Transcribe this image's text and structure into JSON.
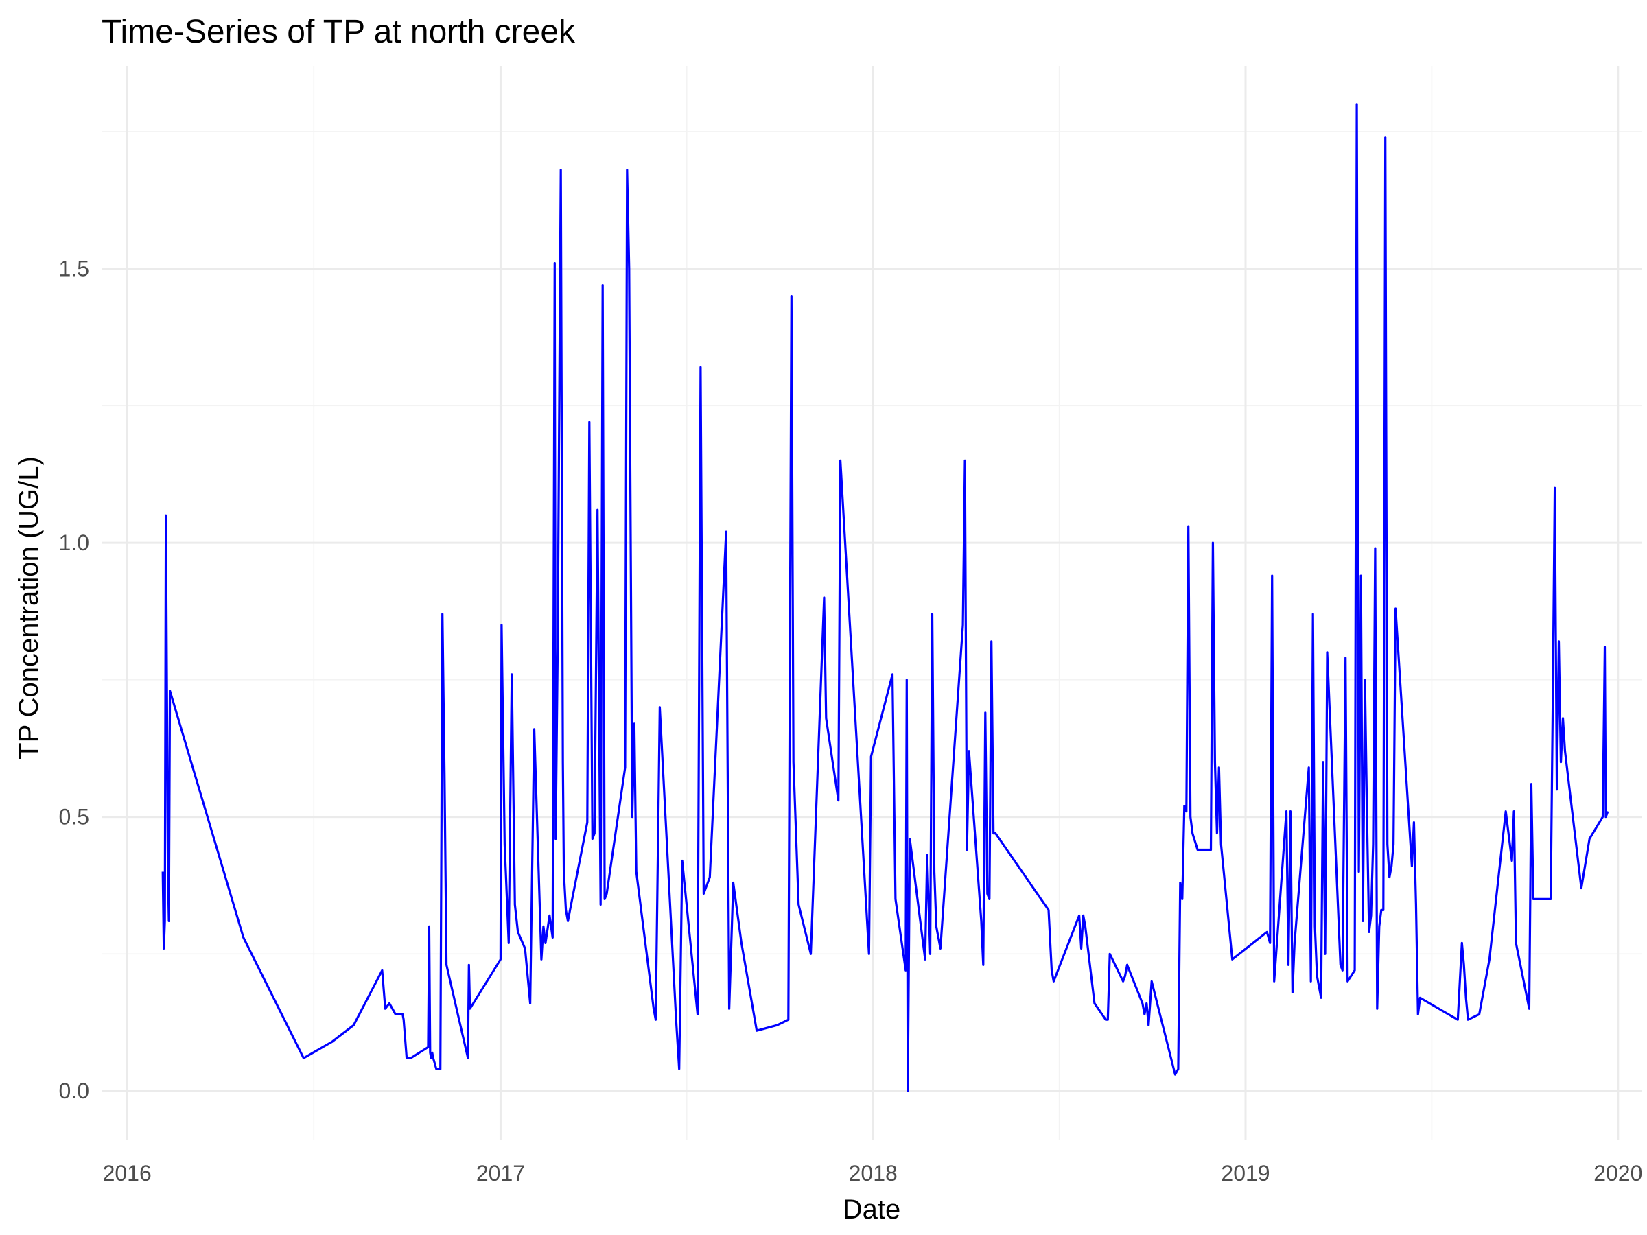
{
  "chart_data": {
    "type": "line",
    "title": "Time-Series of TP at north creek",
    "xlabel": "Date",
    "ylabel": "TP Concentration (UG/L)",
    "x_ticks": [
      "2016",
      "2017",
      "2018",
      "2019",
      "2020"
    ],
    "y_ticks": [
      "0.0",
      "0.5",
      "1.0",
      "1.5"
    ],
    "xlim": [
      "2015-12-07",
      "2020-01-24"
    ],
    "ylim": [
      -0.09,
      1.87
    ],
    "grid": true,
    "legend": "none",
    "series": [
      {
        "color": "#0000ff",
        "x": [
          "2016-02-05",
          "2016-02-06",
          "2016-02-07",
          "2016-02-08",
          "2016-02-09",
          "2016-02-10",
          "2016-02-11",
          "2016-02-12",
          "2016-04-24",
          "2016-06-22",
          "2016-07-20",
          "2016-08-10",
          "2016-09-07",
          "2016-09-10",
          "2016-09-14",
          "2016-09-20",
          "2016-09-27",
          "2016-09-28",
          "2016-10-01",
          "2016-10-05",
          "2016-10-22",
          "2016-10-23",
          "2016-10-24",
          "2016-10-25",
          "2016-10-26",
          "2016-10-27",
          "2016-10-30",
          "2016-11-01",
          "2016-11-03",
          "2016-11-05",
          "2016-11-07",
          "2016-11-09",
          "2016-11-30",
          "2016-12-01",
          "2016-12-02",
          "2017-01-01",
          "2017-01-02",
          "2017-01-05",
          "2017-01-09",
          "2017-01-12",
          "2017-01-15",
          "2017-01-18",
          "2017-01-25",
          "2017-01-30",
          "2017-02-03",
          "2017-02-10",
          "2017-02-12",
          "2017-02-14",
          "2017-02-18",
          "2017-02-21",
          "2017-02-23",
          "2017-02-24",
          "2017-02-26",
          "2017-03-01",
          "2017-03-03",
          "2017-03-04",
          "2017-03-06",
          "2017-03-08",
          "2017-03-10",
          "2017-03-27",
          "2017-03-29",
          "2017-04-01",
          "2017-04-03",
          "2017-04-06",
          "2017-04-09",
          "2017-04-11",
          "2017-04-13",
          "2017-04-15",
          "2017-05-03",
          "2017-05-05",
          "2017-05-07",
          "2017-05-10",
          "2017-05-12",
          "2017-05-14",
          "2017-05-31",
          "2017-06-02",
          "2017-06-06",
          "2017-06-22",
          "2017-06-25",
          "2017-06-28",
          "2017-07-13",
          "2017-07-16",
          "2017-07-19",
          "2017-07-25",
          "2017-08-10",
          "2017-08-13",
          "2017-08-17",
          "2017-08-25",
          "2017-09-09",
          "2017-09-29",
          "2017-10-10",
          "2017-10-13",
          "2017-10-15",
          "2017-10-20",
          "2017-11-01",
          "2017-11-14",
          "2017-11-16",
          "2017-11-28",
          "2017-11-30",
          "2017-12-28",
          "2017-12-30",
          "2018-01-20",
          "2018-01-23",
          "2018-02-02",
          "2018-02-03",
          "2018-02-04",
          "2018-02-06",
          "2018-02-21",
          "2018-02-23",
          "2018-02-26",
          "2018-02-28",
          "2018-03-02",
          "2018-03-04",
          "2018-03-08",
          "2018-03-30",
          "2018-04-01",
          "2018-04-03",
          "2018-04-05",
          "2018-04-17",
          "2018-04-19",
          "2018-04-21",
          "2018-04-23",
          "2018-04-25",
          "2018-04-27",
          "2018-04-29",
          "2018-05-01",
          "2018-06-22",
          "2018-06-25",
          "2018-06-27",
          "2018-07-22",
          "2018-07-24",
          "2018-07-26",
          "2018-07-28",
          "2018-08-06",
          "2018-08-17",
          "2018-08-19",
          "2018-08-21",
          "2018-09-03",
          "2018-09-05",
          "2018-09-07",
          "2018-09-22",
          "2018-09-24",
          "2018-09-26",
          "2018-09-28",
          "2018-10-01",
          "2018-10-24",
          "2018-10-27",
          "2018-10-29",
          "2018-10-31",
          "2018-11-02",
          "2018-11-04",
          "2018-11-06",
          "2018-11-08",
          "2018-11-10",
          "2018-11-15",
          "2018-11-28",
          "2018-11-30",
          "2018-12-02",
          "2018-12-04",
          "2018-12-06",
          "2018-12-08",
          "2018-12-19",
          "2019-01-22",
          "2019-01-25",
          "2019-01-27",
          "2019-01-29",
          "2019-02-10",
          "2019-02-12",
          "2019-02-14",
          "2019-02-16",
          "2019-02-18",
          "2019-03-04",
          "2019-03-06",
          "2019-03-08",
          "2019-03-10",
          "2019-03-12",
          "2019-03-16",
          "2019-03-18",
          "2019-03-20",
          "2019-03-22",
          "2019-04-04",
          "2019-04-06",
          "2019-04-09",
          "2019-04-11",
          "2019-04-18",
          "2019-04-20",
          "2019-04-22",
          "2019-04-24",
          "2019-04-26",
          "2019-04-28",
          "2019-04-30",
          "2019-05-02",
          "2019-05-04",
          "2019-05-06",
          "2019-05-08",
          "2019-05-10",
          "2019-05-12",
          "2019-05-14",
          "2019-05-16",
          "2019-05-18",
          "2019-05-20",
          "2019-05-22",
          "2019-05-24",
          "2019-05-26",
          "2019-05-28",
          "2019-06-13",
          "2019-06-15",
          "2019-06-17",
          "2019-06-19",
          "2019-06-21",
          "2019-07-28",
          "2019-08-01",
          "2019-08-03",
          "2019-08-05",
          "2019-08-07",
          "2019-08-18",
          "2019-08-28",
          "2019-09-13",
          "2019-09-19",
          "2019-09-21",
          "2019-09-23",
          "2019-10-06",
          "2019-10-08",
          "2019-10-10",
          "2019-10-27",
          "2019-10-29",
          "2019-10-31",
          "2019-11-02",
          "2019-11-04",
          "2019-11-06",
          "2019-11-08",
          "2019-11-10",
          "2019-11-26",
          "2019-12-04",
          "2019-12-17",
          "2019-12-19",
          "2019-12-20",
          "2019-12-22"
        ],
        "values": [
          0.4,
          0.26,
          0.31,
          1.05,
          0.73,
          0.4,
          0.31,
          0.73,
          0.28,
          0.06,
          0.09,
          0.12,
          0.22,
          0.15,
          0.16,
          0.14,
          0.14,
          0.13,
          0.06,
          0.06,
          0.08,
          0.3,
          0.07,
          0.06,
          0.07,
          0.06,
          0.04,
          0.04,
          0.04,
          0.87,
          0.58,
          0.23,
          0.06,
          0.23,
          0.15,
          0.24,
          0.85,
          0.45,
          0.27,
          0.76,
          0.34,
          0.29,
          0.26,
          0.16,
          0.66,
          0.24,
          0.3,
          0.27,
          0.32,
          0.28,
          1.51,
          0.46,
          0.82,
          1.68,
          0.6,
          0.4,
          0.33,
          0.31,
          0.33,
          0.49,
          1.22,
          0.46,
          0.47,
          1.06,
          0.34,
          1.47,
          0.35,
          0.36,
          0.59,
          1.68,
          1.5,
          0.5,
          0.67,
          0.4,
          0.15,
          0.13,
          0.7,
          0.13,
          0.04,
          0.42,
          0.14,
          1.32,
          0.36,
          0.39,
          1.02,
          0.15,
          0.38,
          0.27,
          0.11,
          0.12,
          0.13,
          1.45,
          0.6,
          0.34,
          0.25,
          0.9,
          0.68,
          0.53,
          1.15,
          0.25,
          0.61,
          0.76,
          0.35,
          0.22,
          0.75,
          0.0,
          0.46,
          0.24,
          0.43,
          0.25,
          0.87,
          0.4,
          0.3,
          0.26,
          0.85,
          1.15,
          0.44,
          0.62,
          0.31,
          0.23,
          0.69,
          0.36,
          0.35,
          0.82,
          0.47,
          0.47,
          0.33,
          0.22,
          0.2,
          0.32,
          0.26,
          0.32,
          0.3,
          0.16,
          0.13,
          0.13,
          0.25,
          0.2,
          0.21,
          0.23,
          0.16,
          0.14,
          0.16,
          0.12,
          0.2,
          0.03,
          0.04,
          0.38,
          0.35,
          0.52,
          0.51,
          1.03,
          0.5,
          0.47,
          0.44,
          0.44,
          1.0,
          0.6,
          0.47,
          0.59,
          0.45,
          0.24,
          0.29,
          0.27,
          0.94,
          0.2,
          0.51,
          0.23,
          0.51,
          0.18,
          0.27,
          0.59,
          0.2,
          0.87,
          0.3,
          0.21,
          0.17,
          0.6,
          0.25,
          0.8,
          0.23,
          0.22,
          0.79,
          0.2,
          0.22,
          1.8,
          0.4,
          0.94,
          0.31,
          0.75,
          0.5,
          0.29,
          0.32,
          0.45,
          0.99,
          0.15,
          0.3,
          0.33,
          0.33,
          1.74,
          0.45,
          0.39,
          0.41,
          0.45,
          0.88,
          0.41,
          0.49,
          0.34,
          0.14,
          0.17,
          0.13,
          0.27,
          0.23,
          0.17,
          0.13,
          0.14,
          0.24,
          0.51,
          0.42,
          0.51,
          0.27,
          0.15,
          0.56,
          0.35,
          0.35,
          0.7,
          1.1,
          0.55,
          0.82,
          0.6,
          0.68,
          0.62,
          0.37,
          0.46,
          0.5,
          0.81,
          0.5,
          0.51
        ]
      }
    ]
  }
}
